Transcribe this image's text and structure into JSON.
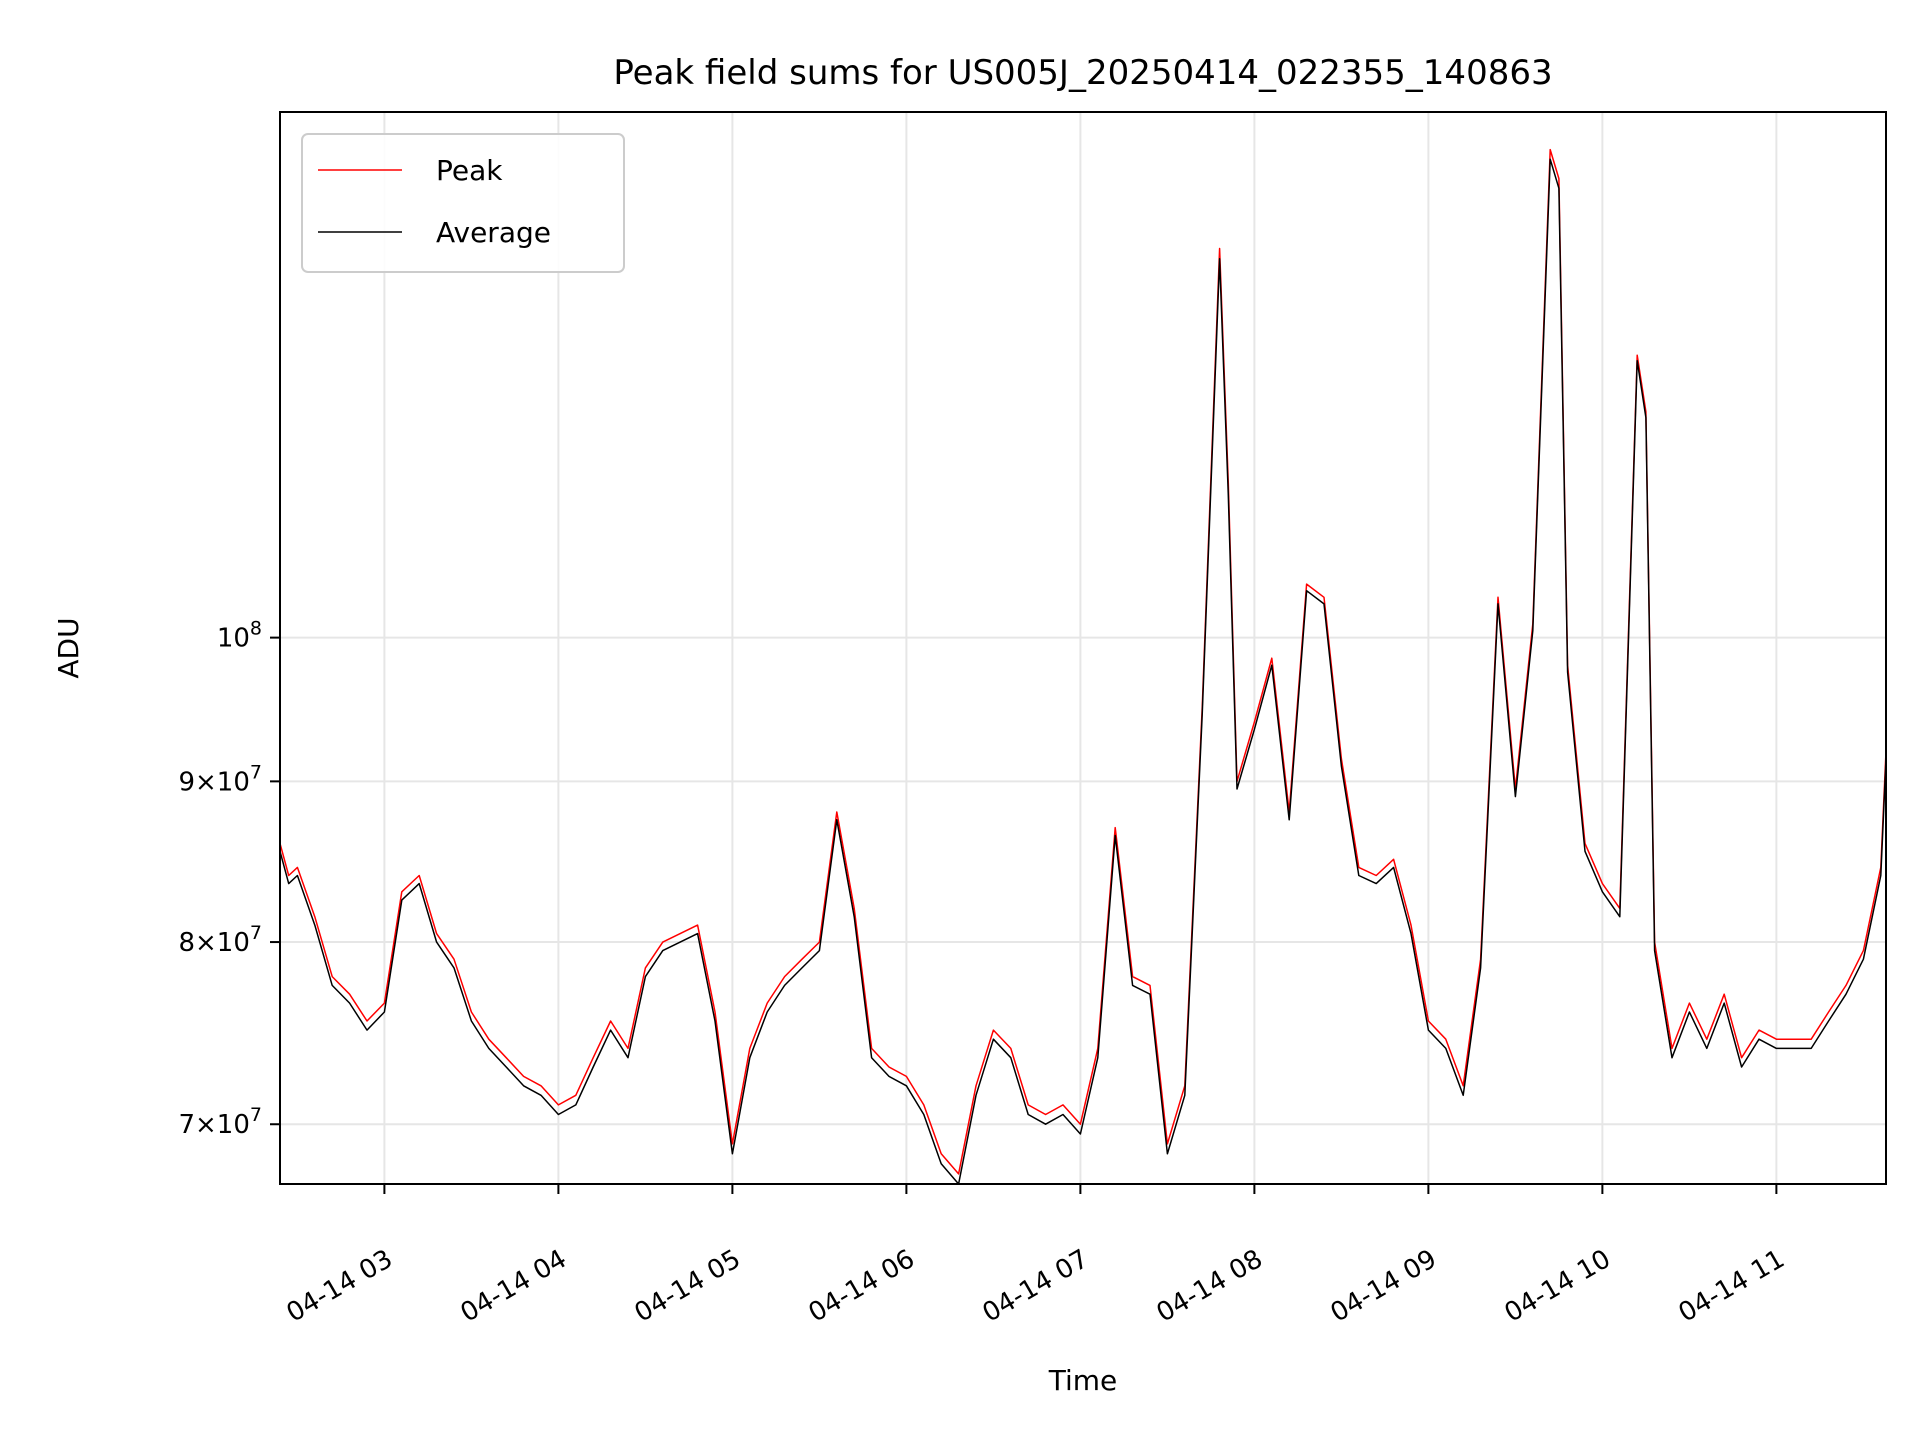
{
  "chart_data": {
    "type": "line",
    "title": "Peak field sums for US005J_20250414_022355_140863",
    "xlabel": "Time",
    "ylabel": "ADU",
    "y_scale": "log",
    "grid": true,
    "legend_position": "top-left",
    "xlim": [
      2.4,
      11.63
    ],
    "ylim": [
      67000000,
      147000000
    ],
    "x_ticks": [
      {
        "value": 3,
        "label": "04-14 03"
      },
      {
        "value": 4,
        "label": "04-14 04"
      },
      {
        "value": 5,
        "label": "04-14 05"
      },
      {
        "value": 6,
        "label": "04-14 06"
      },
      {
        "value": 7,
        "label": "04-14 07"
      },
      {
        "value": 8,
        "label": "04-14 08"
      },
      {
        "value": 9,
        "label": "04-14 09"
      },
      {
        "value": 10,
        "label": "04-14 10"
      },
      {
        "value": 11,
        "label": "04-14 11"
      }
    ],
    "y_ticks": [
      {
        "value": 70000000,
        "mant": "7",
        "exp": "7"
      },
      {
        "value": 80000000,
        "mant": "8",
        "exp": "7"
      },
      {
        "value": 90000000,
        "mant": "9",
        "exp": "7"
      },
      {
        "value": 100000000,
        "mant": "",
        "exp": "8"
      }
    ],
    "series": [
      {
        "name": "Peak",
        "color": "#ff0000",
        "x": [
          2.4,
          2.45,
          2.5,
          2.6,
          2.7,
          2.8,
          2.9,
          3.0,
          3.1,
          3.2,
          3.3,
          3.4,
          3.5,
          3.6,
          3.7,
          3.8,
          3.9,
          4.0,
          4.1,
          4.2,
          4.3,
          4.4,
          4.5,
          4.6,
          4.7,
          4.8,
          4.9,
          5.0,
          5.1,
          5.2,
          5.3,
          5.4,
          5.5,
          5.6,
          5.7,
          5.8,
          5.9,
          6.0,
          6.1,
          6.2,
          6.3,
          6.4,
          6.5,
          6.6,
          6.7,
          6.8,
          6.9,
          7.0,
          7.1,
          7.2,
          7.3,
          7.4,
          7.5,
          7.6,
          7.7,
          7.8,
          7.85,
          7.9,
          8.0,
          8.1,
          8.2,
          8.3,
          8.4,
          8.5,
          8.6,
          8.7,
          8.8,
          8.9,
          9.0,
          9.1,
          9.2,
          9.3,
          9.4,
          9.5,
          9.6,
          9.7,
          9.75,
          9.8,
          9.9,
          10.0,
          10.1,
          10.2,
          10.25,
          10.3,
          10.4,
          10.5,
          10.6,
          10.7,
          10.8,
          10.9,
          11.0,
          11.1,
          11.2,
          11.3,
          11.4,
          11.5,
          11.6,
          11.63
        ],
        "values": [
          86000000,
          84000000,
          84500000,
          81500000,
          78000000,
          77000000,
          75500000,
          76500000,
          83000000,
          84000000,
          80500000,
          79000000,
          76000000,
          74500000,
          73500000,
          72500000,
          72000000,
          71000000,
          71500000,
          73500000,
          75500000,
          74000000,
          78500000,
          80000000,
          80500000,
          81000000,
          76000000,
          69000000,
          74000000,
          76500000,
          78000000,
          79000000,
          80000000,
          88000000,
          82000000,
          74000000,
          73000000,
          72500000,
          71000000,
          68500000,
          67500000,
          72000000,
          75000000,
          74000000,
          71000000,
          70500000,
          71000000,
          70000000,
          74000000,
          87000000,
          78000000,
          77500000,
          69000000,
          72000000,
          95000000,
          133000000,
          112000000,
          90000000,
          94000000,
          98500000,
          88000000,
          104000000,
          103000000,
          91500000,
          84500000,
          84000000,
          85000000,
          81000000,
          75500000,
          74500000,
          72000000,
          79000000,
          103000000,
          89500000,
          101000000,
          143000000,
          140000000,
          98000000,
          86000000,
          83500000,
          82000000,
          123000000,
          118000000,
          80000000,
          74000000,
          76500000,
          74500000,
          77000000,
          73500000,
          75000000,
          74500000,
          74500000,
          74500000,
          76000000,
          77500000,
          79500000,
          84500000,
          92000000
        ]
      },
      {
        "name": "Average",
        "color": "#000000",
        "x": [
          2.4,
          2.45,
          2.5,
          2.6,
          2.7,
          2.8,
          2.9,
          3.0,
          3.1,
          3.2,
          3.3,
          3.4,
          3.5,
          3.6,
          3.7,
          3.8,
          3.9,
          4.0,
          4.1,
          4.2,
          4.3,
          4.4,
          4.5,
          4.6,
          4.7,
          4.8,
          4.9,
          5.0,
          5.1,
          5.2,
          5.3,
          5.4,
          5.5,
          5.6,
          5.7,
          5.8,
          5.9,
          6.0,
          6.1,
          6.2,
          6.3,
          6.4,
          6.5,
          6.6,
          6.7,
          6.8,
          6.9,
          7.0,
          7.1,
          7.2,
          7.3,
          7.4,
          7.5,
          7.6,
          7.7,
          7.8,
          7.85,
          7.9,
          8.0,
          8.1,
          8.2,
          8.3,
          8.4,
          8.5,
          8.6,
          8.7,
          8.8,
          8.9,
          9.0,
          9.1,
          9.2,
          9.3,
          9.4,
          9.5,
          9.6,
          9.7,
          9.75,
          9.8,
          9.9,
          10.0,
          10.1,
          10.2,
          10.25,
          10.3,
          10.4,
          10.5,
          10.6,
          10.7,
          10.8,
          10.9,
          11.0,
          11.1,
          11.2,
          11.3,
          11.4,
          11.5,
          11.6,
          11.63
        ],
        "values": [
          85500000,
          83500000,
          84000000,
          81000000,
          77500000,
          76500000,
          75000000,
          76000000,
          82500000,
          83500000,
          80000000,
          78500000,
          75500000,
          74000000,
          73000000,
          72000000,
          71500000,
          70500000,
          71000000,
          73000000,
          75000000,
          73500000,
          78000000,
          79500000,
          80000000,
          80500000,
          75500000,
          68500000,
          73500000,
          76000000,
          77500000,
          78500000,
          79500000,
          87500000,
          81500000,
          73500000,
          72500000,
          72000000,
          70500000,
          68000000,
          67000000,
          71500000,
          74500000,
          73500000,
          70500000,
          70000000,
          70500000,
          69500000,
          73500000,
          86500000,
          77500000,
          77000000,
          68500000,
          71500000,
          94500000,
          132000000,
          111000000,
          89500000,
          93500000,
          98000000,
          87500000,
          103500000,
          102500000,
          91000000,
          84000000,
          83500000,
          84500000,
          80500000,
          75000000,
          74000000,
          71500000,
          78500000,
          102500000,
          89000000,
          100500000,
          142000000,
          139000000,
          97500000,
          85500000,
          83000000,
          81500000,
          122500000,
          117500000,
          79500000,
          73500000,
          76000000,
          74000000,
          76500000,
          73000000,
          74500000,
          74000000,
          74000000,
          74000000,
          75500000,
          77000000,
          79000000,
          84000000,
          91500000
        ]
      }
    ]
  }
}
